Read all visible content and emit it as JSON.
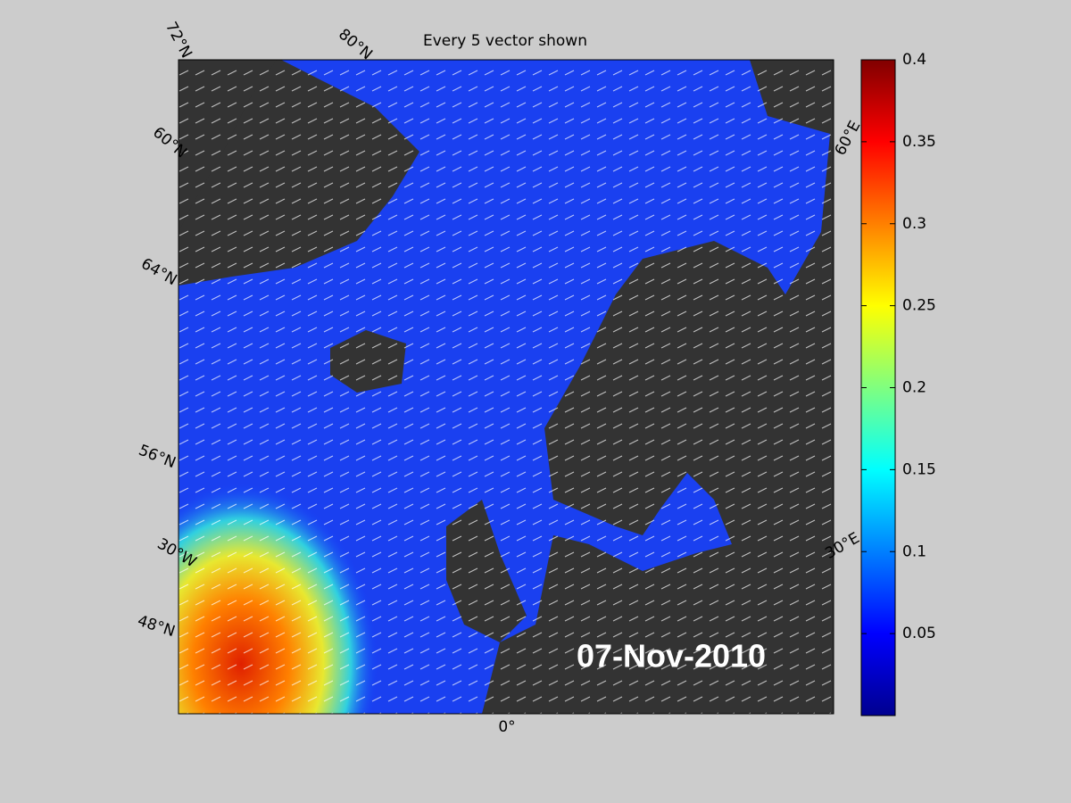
{
  "title": "Every 5 vector shown",
  "map": {
    "labels": [
      "72°N",
      "80°N",
      "60°N",
      "64°N",
      "56°N",
      "48°N",
      "30°W",
      "0°",
      "30°E",
      "60°E"
    ],
    "date": "07-Nov-2010"
  },
  "colorbar": {
    "lim": [
      0,
      0.4
    ],
    "ticks": [
      0.05,
      0.1,
      0.15,
      0.2,
      0.25,
      0.3,
      0.35,
      0.4
    ]
  }
}
